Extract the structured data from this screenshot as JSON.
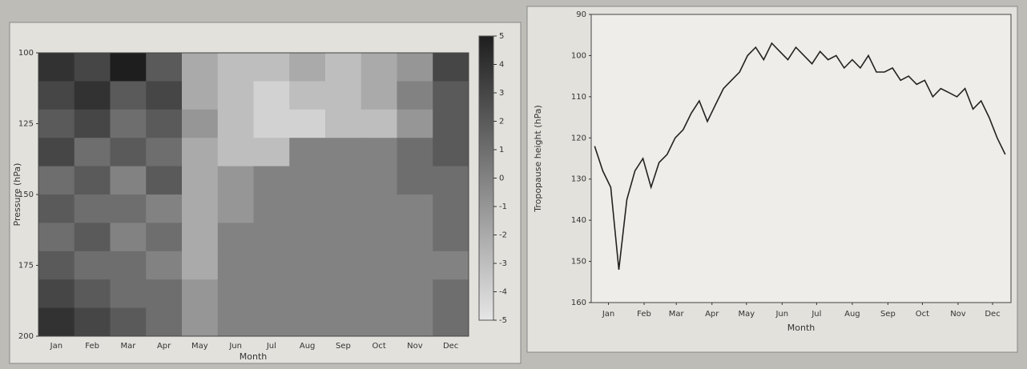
{
  "chart_data": [
    {
      "type": "heatmap",
      "xlabel": "Month",
      "ylabel": "Pressure (hPa)",
      "categories": [
        "Jan",
        "Feb",
        "Mar",
        "Apr",
        "May",
        "Jun",
        "Jul",
        "Aug",
        "Sep",
        "Oct",
        "Nov",
        "Dec"
      ],
      "levels": [
        100,
        110,
        120,
        130,
        140,
        150,
        160,
        170,
        180,
        190
      ],
      "ylim": [
        100,
        200
      ],
      "yticks": [
        100,
        125,
        150,
        175,
        200
      ],
      "y_inverted": true,
      "zlim": [
        -5,
        5
      ],
      "zticks": [
        5,
        4,
        3,
        2,
        1,
        0,
        -1,
        -2,
        -3,
        -4,
        -5
      ],
      "values": [
        [
          4,
          3,
          5,
          2,
          -2,
          -3,
          -3,
          -2,
          -3,
          -2,
          -1,
          3
        ],
        [
          3,
          4,
          2,
          3,
          -2,
          -3,
          -4,
          -3,
          -3,
          -2,
          0,
          2
        ],
        [
          2,
          3,
          1,
          2,
          -1,
          -3,
          -4,
          -4,
          -3,
          -3,
          -1,
          2
        ],
        [
          3,
          1,
          2,
          1,
          -2,
          -3,
          -3,
          0,
          0,
          0,
          1,
          2
        ],
        [
          1,
          2,
          0,
          2,
          -2,
          -1,
          0,
          0,
          0,
          0,
          1,
          1
        ],
        [
          2,
          1,
          1,
          0,
          -2,
          -1,
          0,
          0,
          0,
          0,
          0,
          1
        ],
        [
          1,
          2,
          0,
          1,
          -2,
          0,
          0,
          0,
          0,
          0,
          0,
          1
        ],
        [
          2,
          1,
          1,
          0,
          -2,
          0,
          0,
          0,
          0,
          0,
          0,
          0
        ],
        [
          3,
          2,
          1,
          1,
          -1,
          0,
          0,
          0,
          0,
          0,
          0,
          1
        ],
        [
          4,
          3,
          2,
          1,
          -1,
          0,
          0,
          0,
          0,
          0,
          0,
          1
        ]
      ]
    },
    {
      "type": "line",
      "xlabel": "Month",
      "ylabel": "Tropopause height (hPa)",
      "color": "#222222",
      "x": [
        3,
        10,
        17,
        24,
        31,
        38,
        45,
        52,
        59,
        66,
        73,
        80,
        87,
        94,
        101,
        108,
        115,
        122,
        129,
        136,
        143,
        150,
        157,
        164,
        171,
        178,
        185,
        192,
        199,
        206,
        213,
        220,
        227,
        234,
        241,
        248,
        255,
        262,
        269,
        276,
        283,
        290,
        297,
        304,
        311,
        318,
        325,
        332,
        339,
        346,
        353,
        360
      ],
      "values": [
        122,
        128,
        132,
        152,
        135,
        128,
        125,
        132,
        126,
        124,
        120,
        118,
        114,
        111,
        116,
        112,
        108,
        106,
        104,
        100,
        98,
        101,
        97,
        99,
        101,
        98,
        100,
        102,
        99,
        101,
        100,
        103,
        101,
        103,
        100,
        104,
        104,
        103,
        106,
        105,
        107,
        106,
        110,
        108,
        109,
        110,
        108,
        113,
        111,
        115,
        120,
        124
      ],
      "xlim": [
        0,
        365
      ],
      "xticks": [
        {
          "value": 15,
          "label": "Jan"
        },
        {
          "value": 46,
          "label": "Feb"
        },
        {
          "value": 74,
          "label": "Mar"
        },
        {
          "value": 105,
          "label": "Apr"
        },
        {
          "value": 135,
          "label": "May"
        },
        {
          "value": 166,
          "label": "Jun"
        },
        {
          "value": 196,
          "label": "Jul"
        },
        {
          "value": 227,
          "label": "Aug"
        },
        {
          "value": 258,
          "label": "Sep"
        },
        {
          "value": 288,
          "label": "Oct"
        },
        {
          "value": 319,
          "label": "Nov"
        },
        {
          "value": 349,
          "label": "Dec"
        }
      ],
      "ylim": [
        90,
        160
      ],
      "yticks": [
        90,
        100,
        110,
        120,
        130,
        140,
        150,
        160
      ],
      "y_inverted": true
    }
  ]
}
